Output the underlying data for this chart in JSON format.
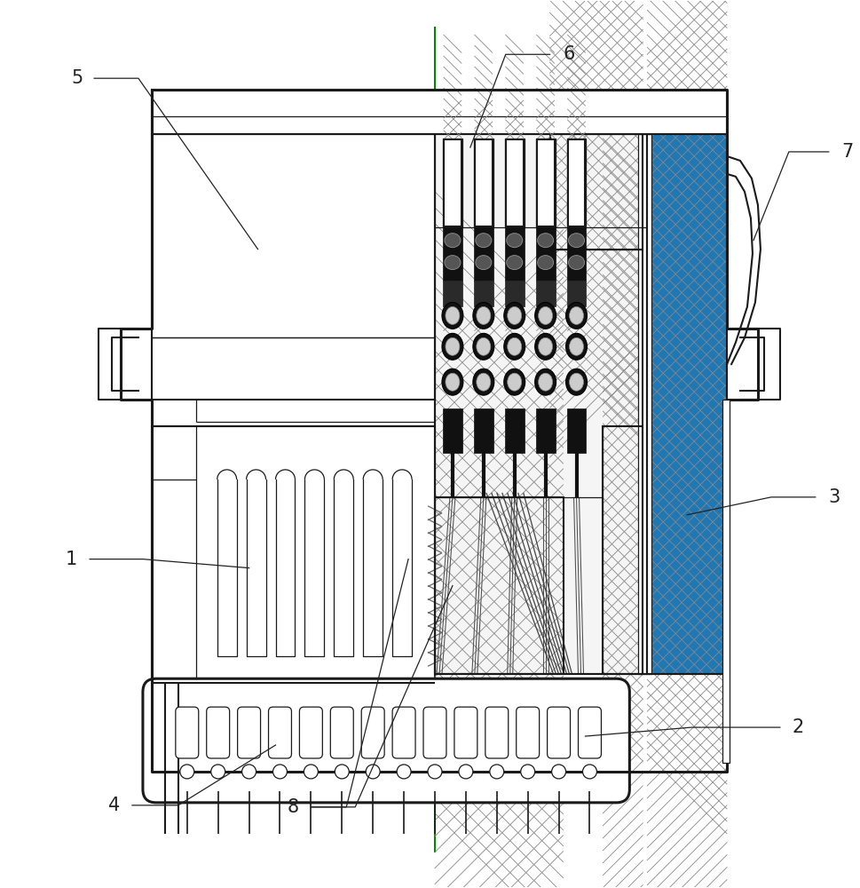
{
  "bg_color": "#ffffff",
  "lc": "#1a1a1a",
  "gc": "#008800",
  "lw_thick": 2.2,
  "lw_main": 1.5,
  "lw_thin": 0.9,
  "label_fs": 15,
  "label_color": "#222222",
  "hatch_color": "#888888",
  "hatch_lw": 0.6,
  "figure_width": 9.7,
  "figure_height": 10.0
}
